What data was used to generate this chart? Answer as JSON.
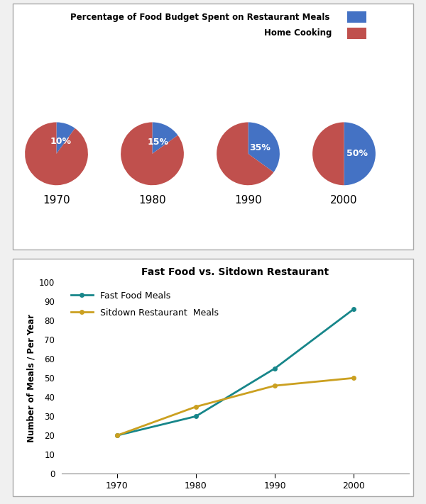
{
  "pie_years": [
    "1970",
    "1980",
    "1990",
    "2000"
  ],
  "pie_restaurant_pct": [
    10,
    15,
    35,
    50
  ],
  "pie_home_pct": [
    90,
    85,
    65,
    50
  ],
  "pie_blue": "#4472C4",
  "pie_red": "#C0504D",
  "pie_legend_restaurant": "Percentage of Food Budget Spent on Restaurant Meals",
  "pie_legend_home": "Home Cooking",
  "line_years": [
    1970,
    1980,
    1990,
    2000
  ],
  "fastfood_meals": [
    20,
    30,
    55,
    86
  ],
  "sitdown_meals": [
    20,
    35,
    46,
    50
  ],
  "line_title": "Fast Food vs. Sitdown Restaurant",
  "line_ylabel": "Number of Meals / Per Year",
  "line_fastfood_color": "#17868A",
  "line_sitdown_color": "#CBA020",
  "line_fastfood_label": "Fast Food Meals",
  "line_sitdown_label": "Sitdown Restaurant  Meals",
  "line_ylim": [
    0,
    100
  ],
  "line_yticks": [
    0,
    10,
    20,
    30,
    40,
    50,
    60,
    70,
    80,
    90,
    100
  ],
  "background_color": "#FFFFFF",
  "panel_edge_color": "#AAAAAA"
}
